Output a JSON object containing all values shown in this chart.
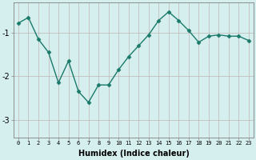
{
  "x": [
    0,
    1,
    2,
    3,
    4,
    5,
    6,
    7,
    8,
    9,
    10,
    11,
    12,
    13,
    14,
    15,
    16,
    17,
    18,
    19,
    20,
    21,
    22,
    23
  ],
  "y": [
    -0.78,
    -0.65,
    -1.15,
    -1.45,
    -2.15,
    -1.65,
    -2.35,
    -2.6,
    -2.2,
    -2.2,
    -1.85,
    -1.55,
    -1.3,
    -1.05,
    -0.72,
    -0.52,
    -0.72,
    -0.95,
    -1.22,
    -1.08,
    -1.05,
    -1.08,
    -1.08,
    -1.18
  ],
  "xlabel": "Humidex (Indice chaleur)",
  "bg_color": "#d5eeee",
  "line_color": "#1a7a6a",
  "marker": "D",
  "marker_size": 2.5,
  "ylim": [
    -3.4,
    -0.3
  ],
  "xlim": [
    -0.5,
    23.5
  ],
  "yticks": [
    -3,
    -2,
    -1
  ],
  "xticks": [
    0,
    1,
    2,
    3,
    4,
    5,
    6,
    7,
    8,
    9,
    10,
    11,
    12,
    13,
    14,
    15,
    16,
    17,
    18,
    19,
    20,
    21,
    22,
    23
  ],
  "grid_color": "#c0b0b0",
  "grid_alpha": 0.9,
  "xlabel_fontsize": 7,
  "xtick_fontsize": 5,
  "ytick_fontsize": 7
}
